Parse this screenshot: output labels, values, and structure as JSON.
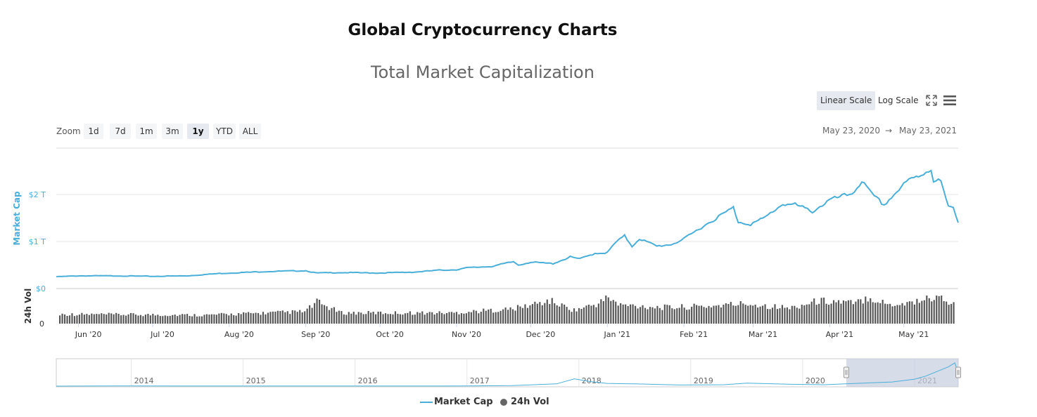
{
  "page": {
    "heading": "Global Cryptocurrency Charts",
    "chart_title": "Total Market Capitalization"
  },
  "toolbar": {
    "linear_scale": "Linear Scale",
    "log_scale": "Log Scale",
    "fullscreen_icon": "fullscreen-icon",
    "menu_icon": "hamburger-menu-icon"
  },
  "zoom": {
    "label": "Zoom",
    "buttons": [
      "1d",
      "7d",
      "1m",
      "3m",
      "1y",
      "YTD",
      "ALL"
    ],
    "active": "1y"
  },
  "range": {
    "from": "May 23, 2020",
    "arrow": "→",
    "to": "May 23, 2021"
  },
  "legend": {
    "market_cap": "Market Cap",
    "volume": "24h Vol"
  },
  "colors": {
    "market_cap": "#4aafd8",
    "volume": "#555555",
    "navigator_mask": "#c6cde0"
  },
  "chart_data": {
    "type": "line",
    "title": "Total Market Capitalization",
    "y_axis": {
      "label": "Market Cap",
      "ticks": [
        "$0",
        "$1 T",
        "$2 T"
      ],
      "tick_values": [
        0,
        1,
        2
      ],
      "unit": "trillion USD"
    },
    "vol_axis": {
      "label": "24h Vol",
      "ticks": [
        "0"
      ]
    },
    "x_axis": {
      "ticks": [
        "Jun '20",
        "Jul '20",
        "Aug '20",
        "Sep '20",
        "Oct '20",
        "Nov '20",
        "Dec '20",
        "Jan '21",
        "Feb '21",
        "Mar '21",
        "Apr '21",
        "May '21"
      ],
      "tick_dates": [
        "2020-06-01",
        "2020-07-01",
        "2020-08-01",
        "2020-09-01",
        "2020-10-01",
        "2020-11-01",
        "2020-12-01",
        "2021-01-01",
        "2021-02-01",
        "2021-03-01",
        "2021-04-01",
        "2021-05-01"
      ],
      "start": "2020-05-23",
      "end": "2021-05-23"
    },
    "series": [
      {
        "name": "Market Cap",
        "points": [
          [
            "2020-05-23",
            0.25
          ],
          [
            "2020-06-01",
            0.27
          ],
          [
            "2020-06-15",
            0.27
          ],
          [
            "2020-07-01",
            0.26
          ],
          [
            "2020-07-15",
            0.27
          ],
          [
            "2020-07-28",
            0.32
          ],
          [
            "2020-08-15",
            0.36
          ],
          [
            "2020-09-01",
            0.38
          ],
          [
            "2020-09-05",
            0.33
          ],
          [
            "2020-09-15",
            0.34
          ],
          [
            "2020-10-01",
            0.33
          ],
          [
            "2020-10-15",
            0.35
          ],
          [
            "2020-10-25",
            0.39
          ],
          [
            "2020-11-01",
            0.4
          ],
          [
            "2020-11-05",
            0.44
          ],
          [
            "2020-11-15",
            0.47
          ],
          [
            "2020-11-24",
            0.57
          ],
          [
            "2020-11-26",
            0.5
          ],
          [
            "2020-12-01",
            0.56
          ],
          [
            "2020-12-10",
            0.53
          ],
          [
            "2020-12-17",
            0.67
          ],
          [
            "2020-12-21",
            0.63
          ],
          [
            "2020-12-27",
            0.75
          ],
          [
            "2021-01-01",
            0.76
          ],
          [
            "2021-01-04",
            0.96
          ],
          [
            "2021-01-08",
            1.12
          ],
          [
            "2021-01-11",
            0.9
          ],
          [
            "2021-01-14",
            1.06
          ],
          [
            "2021-01-21",
            0.9
          ],
          [
            "2021-01-27",
            0.94
          ],
          [
            "2021-02-01",
            1.05
          ],
          [
            "2021-02-08",
            1.3
          ],
          [
            "2021-02-21",
            1.72
          ],
          [
            "2021-02-23",
            1.42
          ],
          [
            "2021-02-28",
            1.37
          ],
          [
            "2021-03-05",
            1.48
          ],
          [
            "2021-03-13",
            1.8
          ],
          [
            "2021-03-18",
            1.78
          ],
          [
            "2021-03-25",
            1.64
          ],
          [
            "2021-04-01",
            1.88
          ],
          [
            "2021-04-10",
            2.02
          ],
          [
            "2021-04-14",
            2.28
          ],
          [
            "2021-04-18",
            2.0
          ],
          [
            "2021-04-23",
            1.78
          ],
          [
            "2021-04-28",
            2.05
          ],
          [
            "2021-05-03",
            2.3
          ],
          [
            "2021-05-08",
            2.42
          ],
          [
            "2021-05-12",
            2.55
          ],
          [
            "2021-05-13",
            2.3
          ],
          [
            "2021-05-16",
            2.28
          ],
          [
            "2021-05-19",
            1.72
          ],
          [
            "2021-05-21",
            1.72
          ],
          [
            "2021-05-23",
            1.4
          ]
        ]
      },
      {
        "name": "24h Vol",
        "type": "column",
        "relative_levels": [
          [
            0,
            0.35
          ],
          [
            60,
            0.32
          ],
          [
            100,
            0.45
          ],
          [
            105,
            0.8
          ],
          [
            115,
            0.4
          ],
          [
            160,
            0.4
          ],
          [
            185,
            0.55
          ],
          [
            200,
            0.85
          ],
          [
            210,
            0.5
          ],
          [
            220,
            0.75
          ],
          [
            224,
            1.0
          ],
          [
            228,
            0.7
          ],
          [
            248,
            0.6
          ],
          [
            265,
            0.65
          ],
          [
            280,
            0.75
          ],
          [
            298,
            0.58
          ],
          [
            310,
            0.85
          ],
          [
            318,
            0.82
          ],
          [
            325,
            0.75
          ],
          [
            330,
            1.0
          ],
          [
            338,
            0.72
          ],
          [
            345,
            0.75
          ],
          [
            360,
            1.05
          ],
          [
            365,
            0.7
          ]
        ]
      }
    ],
    "navigator": {
      "x_labels": [
        "2014",
        "2015",
        "2016",
        "2017",
        "2018",
        "2019",
        "2020",
        "2021"
      ],
      "label_years": [
        2014,
        2015,
        2016,
        2017,
        2018,
        2019,
        2020,
        2021
      ],
      "start_year": 2013.33,
      "end_year": 2021.39,
      "selection_start_year": 2020.39,
      "points": [
        [
          2013.33,
          0.002
        ],
        [
          2013.9,
          0.012
        ],
        [
          2014.5,
          0.008
        ],
        [
          2015.5,
          0.005
        ],
        [
          2016.5,
          0.01
        ],
        [
          2017.0,
          0.018
        ],
        [
          2017.4,
          0.06
        ],
        [
          2017.8,
          0.25
        ],
        [
          2017.96,
          0.8
        ],
        [
          2018.1,
          0.5
        ],
        [
          2018.25,
          0.3
        ],
        [
          2018.5,
          0.25
        ],
        [
          2018.9,
          0.12
        ],
        [
          2019.3,
          0.15
        ],
        [
          2019.5,
          0.33
        ],
        [
          2019.9,
          0.2
        ],
        [
          2020.2,
          0.15
        ],
        [
          2020.4,
          0.26
        ],
        [
          2020.8,
          0.45
        ],
        [
          2021.0,
          0.76
        ],
        [
          2021.1,
          1.1
        ],
        [
          2021.3,
          2.1
        ],
        [
          2021.36,
          2.55
        ],
        [
          2021.39,
          1.4
        ]
      ]
    }
  }
}
